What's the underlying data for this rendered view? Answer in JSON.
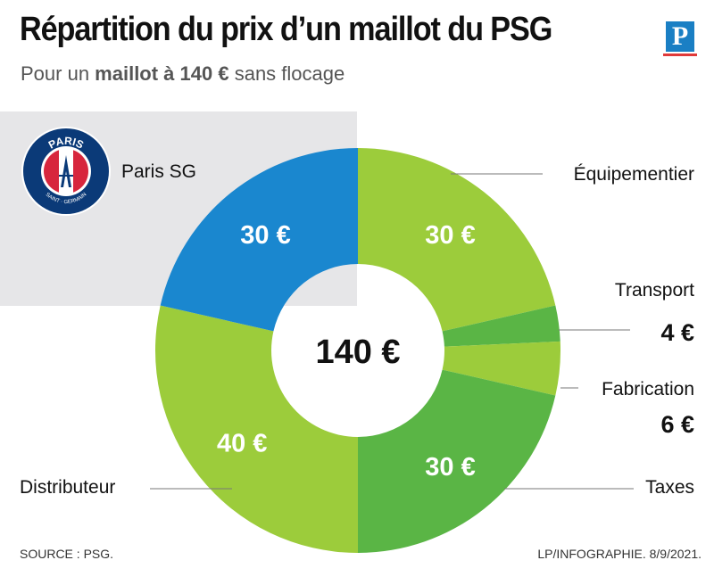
{
  "header": {
    "title": "Répartition du prix d’un maillot du PSG",
    "subtitle_pre": "Pour un ",
    "subtitle_bold": "maillot à 140 €",
    "subtitle_post": " sans flocage",
    "logo_letter": "P"
  },
  "club": {
    "label": "Paris SG",
    "crest_top": "PARIS",
    "crest_bottom": "SAINT · GERMAIN"
  },
  "chart_data": {
    "type": "pie",
    "title": "Répartition du prix d’un maillot du PSG",
    "total": 140,
    "center_label": "140 €",
    "slices": [
      {
        "name": "Équipementier",
        "value": 30,
        "label": "30 €",
        "color": "#9ccc3b"
      },
      {
        "name": "Transport",
        "value": 4,
        "label": "4 €",
        "color": "#5ab545"
      },
      {
        "name": "Fabrication",
        "value": 6,
        "label": "6 €",
        "color": "#9ccc3b"
      },
      {
        "name": "Taxes",
        "value": 30,
        "label": "30 €",
        "color": "#5ab545"
      },
      {
        "name": "Distributeur",
        "value": 40,
        "label": "40 €",
        "color": "#9ccc3b"
      },
      {
        "name": "Paris SG",
        "value": 30,
        "label": "30 €",
        "color": "#1a87cf"
      }
    ]
  },
  "footer": {
    "source": "SOURCE : PSG.",
    "credit": "LP/INFOGRAPHIE.  8/9/2021."
  },
  "colors": {
    "psg_blue": "#1a87cf",
    "light_green": "#9ccc3b",
    "dark_green": "#5ab545",
    "logo_blue": "#1a7fc4",
    "logo_red": "#e03a3a"
  }
}
